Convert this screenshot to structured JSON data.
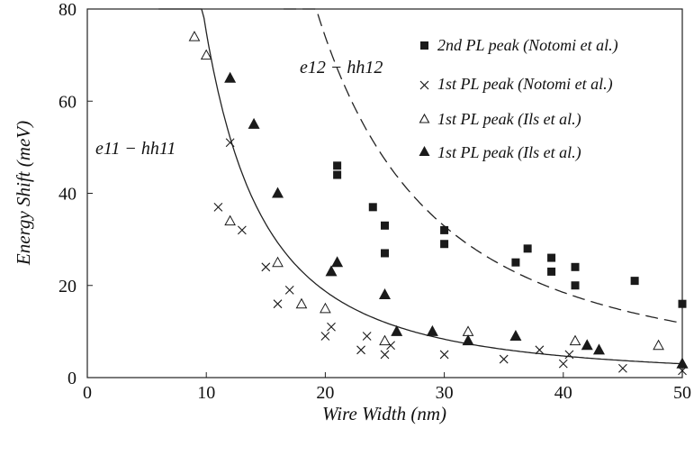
{
  "chart_data": {
    "type": "scatter",
    "xlabel": "Wire Width (nm)",
    "ylabel": "Energy Shift (meV)",
    "xlim": [
      0,
      50
    ],
    "ylim": [
      0,
      80
    ],
    "xticks": [
      0,
      10,
      20,
      30,
      40,
      50
    ],
    "yticks": [
      0,
      20,
      40,
      60,
      80
    ],
    "grid": false,
    "legend_position": "top-right",
    "series": [
      {
        "name": "2nd PL peak (Notomi et al.)",
        "marker": "filled-square",
        "points": [
          [
            21,
            46
          ],
          [
            21,
            44
          ],
          [
            24,
            37
          ],
          [
            25,
            33
          ],
          [
            25,
            27
          ],
          [
            30,
            32
          ],
          [
            30,
            29
          ],
          [
            36,
            25
          ],
          [
            37,
            28
          ],
          [
            39,
            26
          ],
          [
            39,
            23
          ],
          [
            41,
            24
          ],
          [
            41,
            20
          ],
          [
            46,
            21
          ],
          [
            50,
            16
          ]
        ]
      },
      {
        "name": "1st PL peak (Notomi et al.)",
        "marker": "cross",
        "points": [
          [
            11,
            37
          ],
          [
            12,
            51
          ],
          [
            13,
            32
          ],
          [
            15,
            24
          ],
          [
            16,
            16
          ],
          [
            17,
            19
          ],
          [
            20,
            9
          ],
          [
            20.5,
            11
          ],
          [
            23,
            6
          ],
          [
            23.5,
            9
          ],
          [
            25,
            5
          ],
          [
            25.5,
            7
          ],
          [
            30,
            5
          ],
          [
            35,
            4
          ],
          [
            38,
            6
          ],
          [
            40,
            3
          ],
          [
            40.5,
            5
          ],
          [
            45,
            2
          ],
          [
            50,
            1.5
          ]
        ]
      },
      {
        "name": "1st PL peak (Ils et al.)",
        "marker": "open-triangle",
        "points": [
          [
            9,
            74
          ],
          [
            10,
            70
          ],
          [
            12,
            34
          ],
          [
            16,
            25
          ],
          [
            18,
            16
          ],
          [
            20,
            15
          ],
          [
            25,
            8
          ],
          [
            32,
            10
          ],
          [
            41,
            8
          ],
          [
            48,
            7
          ],
          [
            50,
            3
          ]
        ]
      },
      {
        "name": "1st PL peak (Ils et al.)",
        "marker": "filled-triangle",
        "points": [
          [
            12,
            65
          ],
          [
            14,
            55
          ],
          [
            16,
            40
          ],
          [
            20.5,
            23
          ],
          [
            21,
            25
          ],
          [
            25,
            18
          ],
          [
            26,
            10
          ],
          [
            29,
            10
          ],
          [
            32,
            8
          ],
          [
            36,
            9
          ],
          [
            42,
            7
          ],
          [
            43,
            6
          ],
          [
            50,
            3
          ]
        ]
      }
    ],
    "curves": [
      {
        "label": "e11 − hh11",
        "style": "solid",
        "model": "A/x^2",
        "A": 7500,
        "x_start": 6.0,
        "x_end": 50
      },
      {
        "label": "e12 − hh12",
        "style": "dashed",
        "model": "A/x^2",
        "A": 29600,
        "x_start": 16.5,
        "x_end": 50
      }
    ]
  },
  "labels": {
    "x_axis": "Wire Width (nm)",
    "y_axis": "Energy Shift (meV)",
    "curve_solid": "e11 − hh11",
    "curve_dashed": "e12 − hh12",
    "legend": [
      "2nd PL peak (Notomi et al.)",
      "1st PL peak (Notomi et al.)",
      "1st PL peak (Ils et al.)",
      "1st PL peak (Ils et al.)"
    ]
  }
}
